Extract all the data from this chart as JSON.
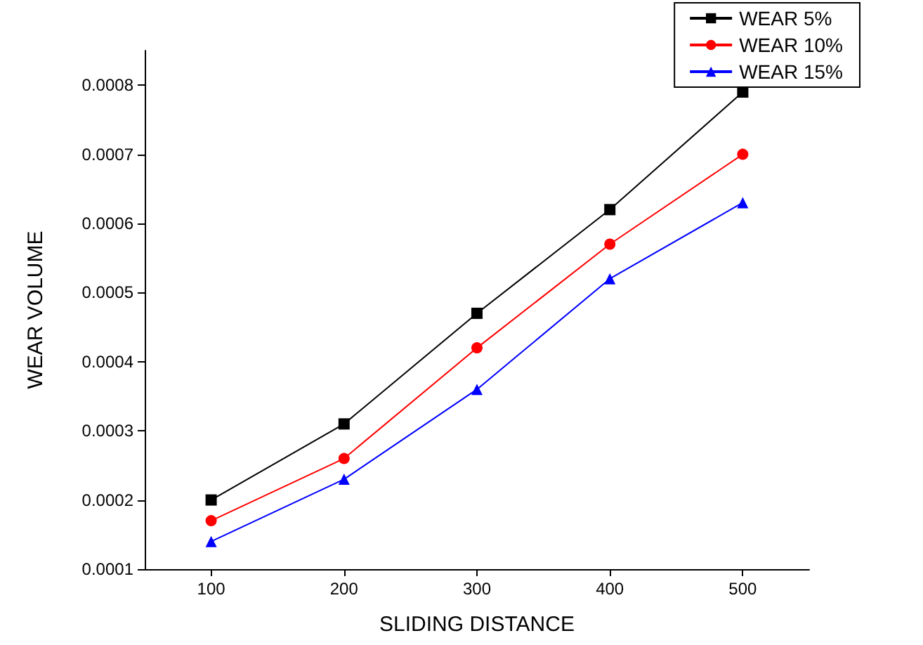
{
  "chart_data": {
    "type": "line",
    "xlabel": "SLIDING DISTANCE",
    "ylabel": "WEAR VOLUME",
    "x": [
      100,
      200,
      300,
      400,
      500
    ],
    "series": [
      {
        "name": "WEAR 5%",
        "color": "#000000",
        "marker": "square",
        "values": [
          0.0002,
          0.00031,
          0.00047,
          0.00062,
          0.00079
        ]
      },
      {
        "name": "WEAR 10%",
        "color": "#ff0000",
        "marker": "circle",
        "values": [
          0.00017,
          0.00026,
          0.00042,
          0.00057,
          0.0007
        ]
      },
      {
        "name": "WEAR 15%",
        "color": "#0000ff",
        "marker": "triangle",
        "values": [
          0.00014,
          0.00023,
          0.00036,
          0.00052,
          0.00063
        ]
      }
    ],
    "xlim": [
      50,
      550
    ],
    "xticks": [
      100,
      200,
      300,
      400,
      500
    ],
    "ylim": [
      0.0001,
      0.00085
    ],
    "yticks": [
      0.0001,
      0.0002,
      0.0003,
      0.0004,
      0.0005,
      0.0006,
      0.0007,
      0.0008
    ],
    "grid": false,
    "legend": "top right",
    "line_style": "solid"
  }
}
